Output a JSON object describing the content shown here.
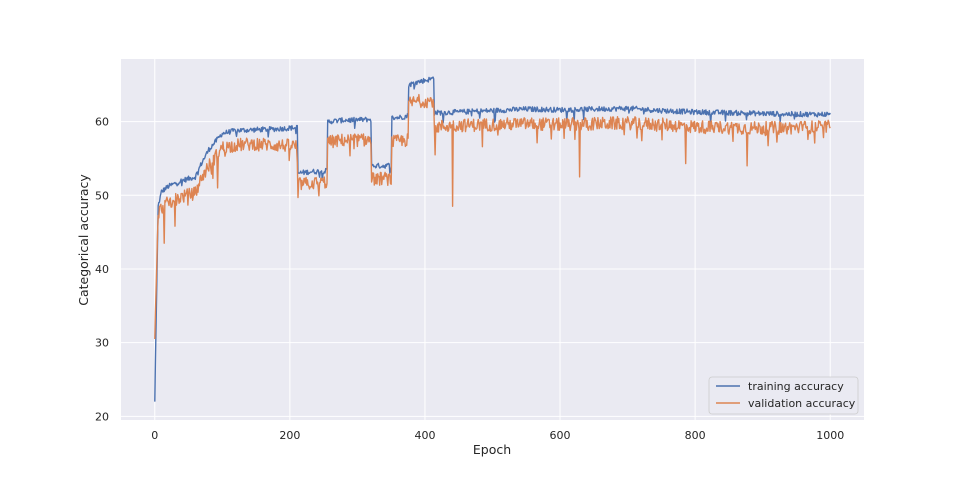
{
  "chart_data": {
    "type": "line",
    "title": "",
    "xlabel": "Epoch",
    "ylabel": "Categorical accuracy",
    "xlim": [
      -50,
      1050
    ],
    "ylim": [
      19.5,
      68.5
    ],
    "xticks": [
      0,
      200,
      400,
      600,
      800,
      1000
    ],
    "yticks": [
      20,
      30,
      40,
      50,
      60
    ],
    "grid": true,
    "legend_position": "lower-right",
    "background_color": "#eaeaf2",
    "grid_color": "#ffffff",
    "series": [
      {
        "name": "training accuracy",
        "color": "#4c72b0",
        "segments": [
          {
            "x": [
              0,
              5,
              10,
              20,
              40,
              60,
              70,
              80,
              100,
              120,
              150,
              180,
              211
            ],
            "y": [
              22,
              48.5,
              50.5,
              51.2,
              52,
              52.5,
              54.5,
              56.2,
              58.4,
              58.8,
              58.9,
              59,
              59.2
            ]
          },
          {
            "x": [
              212,
              230,
              255
            ],
            "y": [
              53,
              53.2,
              53.3
            ]
          },
          {
            "x": [
              256,
              280,
              320
            ],
            "y": [
              60,
              60.2,
              60.3
            ]
          },
          {
            "x": [
              321,
              340,
              350
            ],
            "y": [
              54,
              54,
              54.1
            ]
          },
          {
            "x": [
              351,
              365,
              375
            ],
            "y": [
              60.5,
              60.6,
              60.8
            ]
          },
          {
            "x": [
              376,
              390,
              410,
              413
            ],
            "y": [
              65,
              65.4,
              65.8,
              66
            ]
          },
          {
            "x": [
              414,
              450,
              500,
              550,
              600,
              650,
              700,
              750,
              800,
              850,
              900,
              950,
              1000
            ],
            "y": [
              61.2,
              61.3,
              61.5,
              61.7,
              61.6,
              61.7,
              61.8,
              61.5,
              61.3,
              61.2,
              61.1,
              61,
              61
            ]
          }
        ],
        "noise": 0.35
      },
      {
        "name": "validation accuracy",
        "color": "#dd8452",
        "segments": [
          {
            "x": [
              0,
              5,
              10,
              20,
              40,
              60,
              70,
              80,
              100,
              120,
              150,
              180,
              211
            ],
            "y": [
              30.5,
              47.5,
              48.3,
              49,
              49.8,
              50.3,
              52.5,
              54,
              56.5,
              56.8,
              57,
              56.8,
              56.7
            ]
          },
          {
            "x": [
              212,
              230,
              255
            ],
            "y": [
              51.5,
              51.6,
              51.8
            ]
          },
          {
            "x": [
              256,
              280,
              320
            ],
            "y": [
              57.2,
              57.5,
              57.5
            ]
          },
          {
            "x": [
              321,
              340,
              350
            ],
            "y": [
              52.2,
              52.3,
              52.2
            ]
          },
          {
            "x": [
              351,
              365,
              375
            ],
            "y": [
              57.2,
              57.4,
              57.5
            ]
          },
          {
            "x": [
              376,
              390,
              410,
              413
            ],
            "y": [
              62.5,
              62.8,
              62.8,
              63
            ]
          },
          {
            "x": [
              414,
              450,
              500,
              550,
              600,
              650,
              700,
              750,
              800,
              850,
              900,
              950,
              1000
            ],
            "y": [
              59.3,
              59.5,
              59.6,
              59.7,
              59.6,
              59.7,
              59.8,
              59.6,
              59.3,
              59.2,
              59.1,
              59.2,
              59.3
            ]
          }
        ],
        "noise": 0.9,
        "dips": [
          {
            "x": 14,
            "y": 43.5
          },
          {
            "x": 30,
            "y": 45.8
          },
          {
            "x": 93,
            "y": 51
          },
          {
            "x": 212,
            "y": 49.7
          },
          {
            "x": 415,
            "y": 55.5
          },
          {
            "x": 441,
            "y": 48.5
          },
          {
            "x": 629,
            "y": 52.5
          },
          {
            "x": 786,
            "y": 54.3
          },
          {
            "x": 877,
            "y": 54
          }
        ]
      }
    ]
  }
}
